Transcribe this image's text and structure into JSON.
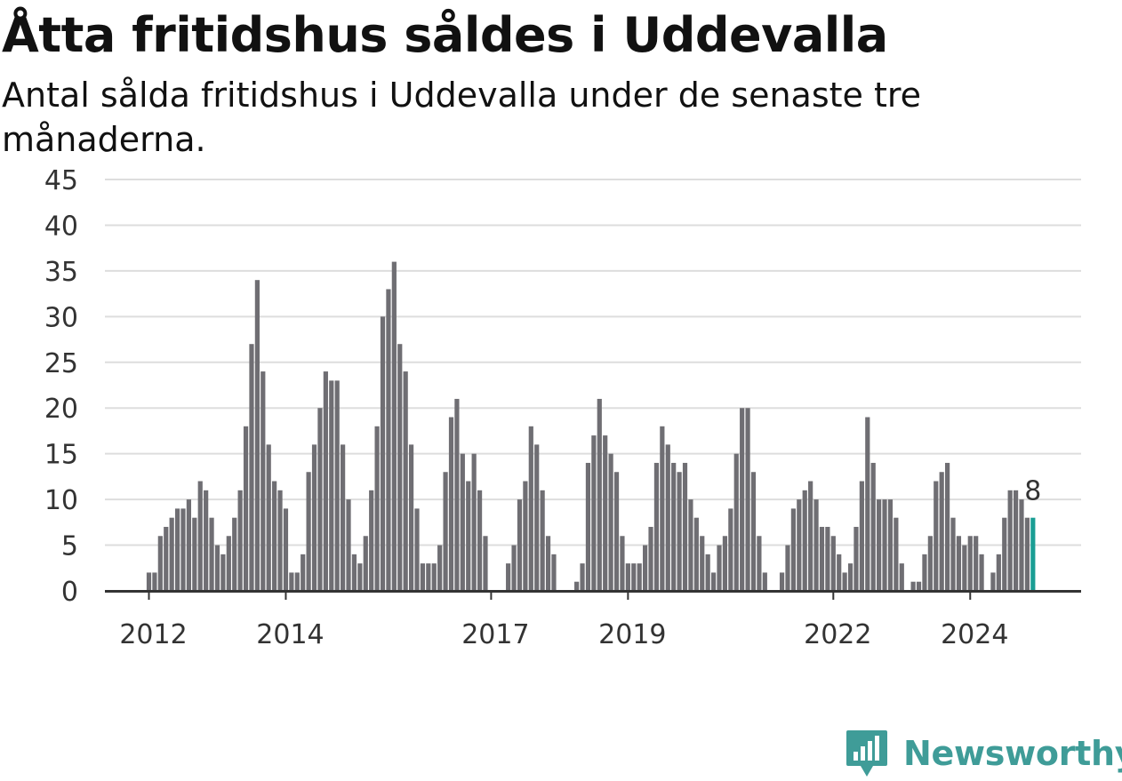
{
  "title": "Åtta fritidshus såldes i Uddevalla",
  "subtitle": "Antal sålda fritidshus i Uddevalla under de senaste tre månaderna.",
  "brand": {
    "name": "Newsworthy",
    "color": "#3f9c98",
    "icon": "newsworthy-logo-icon"
  },
  "colors": {
    "bar": "#6f6e73",
    "highlight": "#1a9e94",
    "grid": "#dddddd",
    "axis": "#333333"
  },
  "chart_data": {
    "type": "bar",
    "title": "Åtta fritidshus såldes i Uddevalla",
    "xlabel": "",
    "ylabel": "",
    "ylim": [
      0,
      45
    ],
    "yticks": [
      0,
      5,
      10,
      15,
      20,
      25,
      30,
      35,
      40,
      45
    ],
    "xticks": [
      "2012",
      "2014",
      "2017",
      "2019",
      "2022",
      "2024"
    ],
    "grid": true,
    "highlight_label": "8",
    "series": [
      {
        "values": [
          2,
          2,
          6,
          7,
          8,
          9,
          9,
          10,
          8,
          12,
          11,
          8,
          5,
          4,
          6,
          8,
          11,
          18,
          27,
          34,
          24,
          16,
          12,
          11,
          9,
          2,
          2,
          4,
          13,
          16,
          20,
          24,
          23,
          23,
          16,
          10,
          4,
          3,
          6,
          11,
          18,
          30,
          33,
          36,
          27,
          24,
          16,
          9,
          3,
          3,
          3,
          5,
          13,
          19,
          21,
          15,
          12,
          15,
          11,
          6,
          0,
          0,
          0,
          3,
          5,
          10,
          12,
          18,
          16,
          11,
          6,
          4,
          0,
          0,
          0,
          1,
          3,
          14,
          17,
          21,
          17,
          15,
          13,
          6,
          3,
          3,
          3,
          5,
          7,
          14,
          18,
          16,
          14,
          13,
          14,
          10,
          8,
          6,
          4,
          2,
          5,
          6,
          9,
          15,
          20,
          20,
          13,
          6,
          2,
          0,
          0,
          2,
          5,
          9,
          10,
          11,
          12,
          10,
          7,
          7,
          6,
          4,
          2,
          3,
          7,
          12,
          19,
          14,
          10,
          10,
          10,
          8,
          3,
          0,
          1,
          1,
          4,
          6,
          12,
          13,
          14,
          8,
          6,
          5,
          6,
          6,
          4,
          0,
          2,
          4,
          8,
          11,
          11,
          10,
          8,
          8
        ]
      }
    ]
  }
}
